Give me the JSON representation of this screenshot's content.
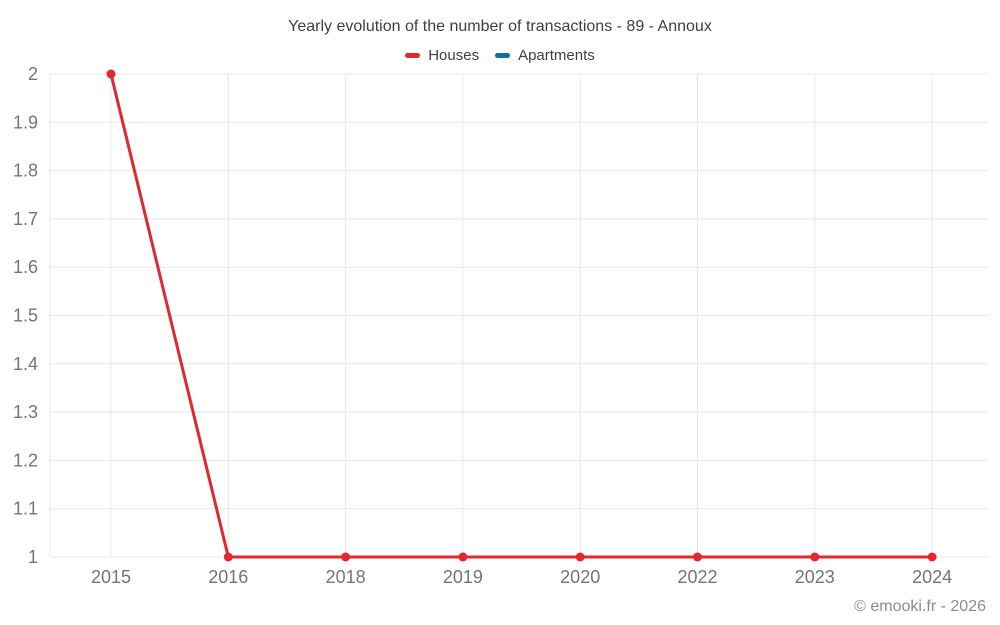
{
  "page": {
    "title": "Yearly evolution of the number of transactions - 89 - Annoux",
    "footer": "© emooki.fr - 2026"
  },
  "legend": {
    "items": [
      {
        "label": "Houses",
        "color": "#e0282e"
      },
      {
        "label": "Apartments",
        "color": "#0f6fa6"
      }
    ]
  },
  "colors": {
    "background": "#ffffff",
    "grid": "#e8e8e8",
    "tick_label": "#757575",
    "title_text": "#3f3f3f",
    "footer_text": "#8c8c8c",
    "houses": "#e0282e",
    "apartments": "#0f6fa6"
  },
  "chart_data": {
    "type": "line",
    "title": "Yearly evolution of the number of transactions - 89 - Annoux",
    "xlabel": "",
    "ylabel": "",
    "categories": [
      "2015",
      "2016",
      "2018",
      "2019",
      "2020",
      "2022",
      "2023",
      "2024"
    ],
    "series": [
      {
        "name": "Houses",
        "color": "#e0282e",
        "values": [
          2,
          1,
          1,
          1,
          1,
          1,
          1,
          1
        ]
      },
      {
        "name": "Apartments",
        "color": "#0f6fa6",
        "values": []
      }
    ],
    "ylim": [
      1,
      2
    ],
    "y_ticks": [
      {
        "v": 2,
        "label": "2"
      },
      {
        "v": 1.9,
        "label": "1.9"
      },
      {
        "v": 1.8,
        "label": "1.8"
      },
      {
        "v": 1.7,
        "label": "1.7"
      },
      {
        "v": 1.6,
        "label": "1.6"
      },
      {
        "v": 1.5,
        "label": "1.5"
      },
      {
        "v": 1.4,
        "label": "1.4"
      },
      {
        "v": 1.3,
        "label": "1.3"
      },
      {
        "v": 1.2,
        "label": "1.2"
      },
      {
        "v": 1.1,
        "label": "1.1"
      },
      {
        "v": 1,
        "label": "1"
      }
    ],
    "grid": true,
    "legend_position": "top"
  }
}
